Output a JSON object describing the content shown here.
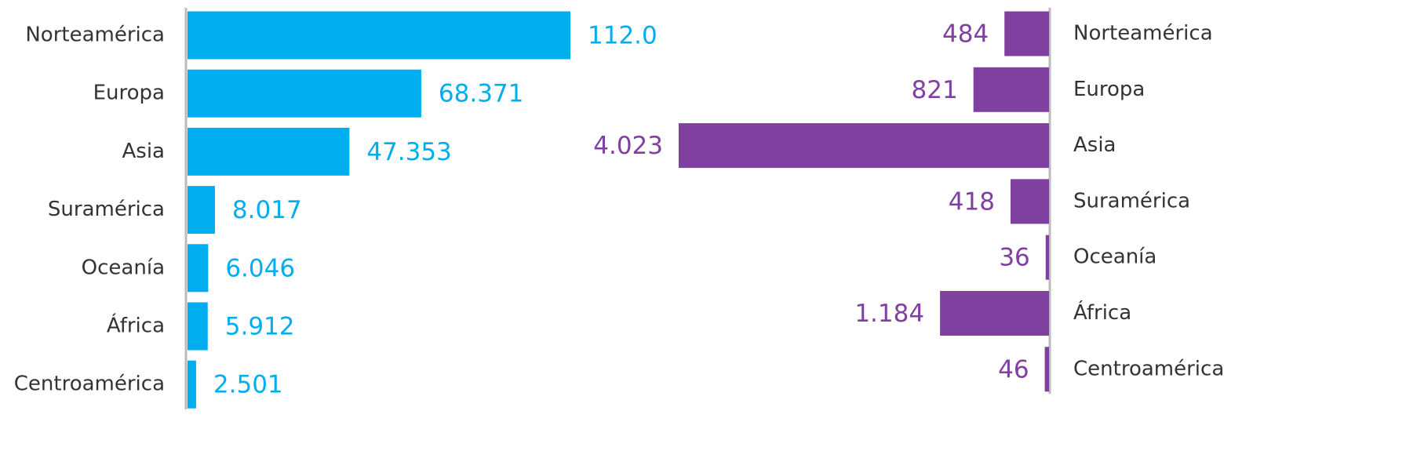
{
  "chart_data": [
    {
      "type": "bar",
      "orientation": "horizontal",
      "categories": [
        "Norteamérica",
        "Europa",
        "Asia",
        "Suramérica",
        "Oceanía",
        "África",
        "Centroamérica"
      ],
      "values": [
        112.0,
        68.371,
        47.353,
        8.017,
        6.046,
        5.912,
        2.501
      ],
      "value_labels": [
        "112.0",
        "68.371",
        "47.353",
        "8.017",
        "6.046",
        "5.912",
        "2.501"
      ],
      "color": "#00aeef"
    },
    {
      "type": "bar",
      "orientation": "horizontal-reversed",
      "categories": [
        "Norteamérica",
        "Europa",
        "Asia",
        "Suramérica",
        "Oceanía",
        "África",
        "Centroamérica"
      ],
      "values": [
        484,
        821,
        4023,
        418,
        36,
        1184,
        46
      ],
      "value_labels": [
        "484",
        "821",
        "4.023",
        "418",
        "36",
        "1.184",
        "46"
      ],
      "color": "#8040a0"
    }
  ]
}
